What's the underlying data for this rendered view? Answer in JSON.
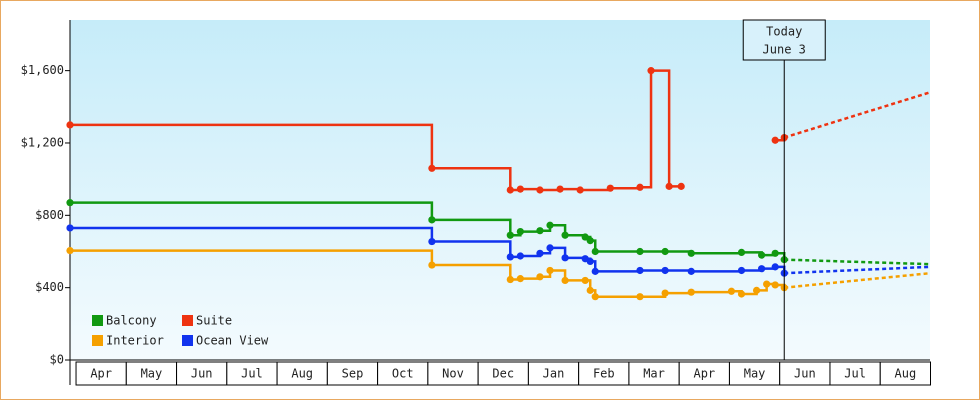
{
  "chart_data": {
    "type": "step-line",
    "xlim": [
      -0.12,
      16.99
    ],
    "ylim": [
      0,
      1880
    ],
    "yticks": [
      {
        "value": 0,
        "label": "$0"
      },
      {
        "value": 400,
        "label": "$400"
      },
      {
        "value": 800,
        "label": "$800"
      },
      {
        "value": 1200,
        "label": "$1,200"
      },
      {
        "value": 1600,
        "label": "$1,600"
      }
    ],
    "x_categories": [
      "Apr",
      "May",
      "Jun",
      "Jul",
      "Aug",
      "Sep",
      "Oct",
      "Nov",
      "Dec",
      "Jan",
      "Feb",
      "Mar",
      "Apr",
      "May",
      "Jun",
      "Jul",
      "Aug"
    ],
    "annotation": {
      "x": 14.09,
      "lines": [
        "Today",
        "June 3"
      ]
    },
    "series": [
      {
        "name": "Balcony",
        "color": "#119911",
        "x": [
          -0.12,
          7.08,
          8.64,
          8.84,
          9.23,
          9.43,
          9.73,
          10.13,
          10.23,
          10.33,
          11.22,
          11.72,
          12.24,
          13.24,
          13.64,
          13.91,
          14.09
        ],
        "values": [
          870,
          775,
          690,
          710,
          715,
          745,
          690,
          680,
          660,
          600,
          600,
          600,
          590,
          595,
          580,
          590,
          555
        ],
        "forecast": {
          "x": [
            14.09,
            16.99
          ],
          "values": [
            555,
            530
          ]
        }
      },
      {
        "name": "Suite",
        "color": "#ee3311",
        "x": [
          -0.12,
          7.08,
          8.64,
          8.84,
          9.23,
          9.63,
          10.03,
          10.63,
          11.22,
          11.44,
          11.8,
          12.04,
          13.0,
          13.91,
          14.09
        ],
        "values": [
          1300,
          1060,
          940,
          945,
          940,
          945,
          940,
          950,
          955,
          1600,
          960,
          960,
          null,
          1215,
          1230
        ],
        "forecast": {
          "x": [
            14.09,
            16.99
          ],
          "values": [
            1230,
            1480
          ]
        }
      },
      {
        "name": "Interior",
        "color": "#f5a000",
        "x": [
          -0.12,
          7.08,
          8.64,
          8.84,
          9.23,
          9.43,
          9.73,
          10.13,
          10.23,
          10.33,
          11.22,
          11.72,
          12.24,
          13.04,
          13.24,
          13.54,
          13.74,
          13.91,
          14.09
        ],
        "values": [
          605,
          525,
          445,
          450,
          460,
          495,
          440,
          440,
          385,
          350,
          350,
          370,
          375,
          380,
          365,
          385,
          420,
          415,
          400
        ],
        "forecast": {
          "x": [
            14.09,
            16.99
          ],
          "values": [
            400,
            480
          ]
        }
      },
      {
        "name": "Ocean View",
        "color": "#1133ee",
        "x": [
          -0.12,
          7.08,
          8.64,
          8.84,
          9.23,
          9.43,
          9.73,
          10.13,
          10.23,
          10.33,
          11.22,
          11.72,
          12.24,
          13.24,
          13.64,
          13.91,
          14.09
        ],
        "values": [
          730,
          655,
          570,
          575,
          590,
          620,
          565,
          560,
          545,
          490,
          495,
          495,
          490,
          495,
          505,
          515,
          480
        ],
        "forecast": {
          "x": [
            14.09,
            16.99
          ],
          "values": [
            480,
            515
          ]
        }
      }
    ]
  }
}
